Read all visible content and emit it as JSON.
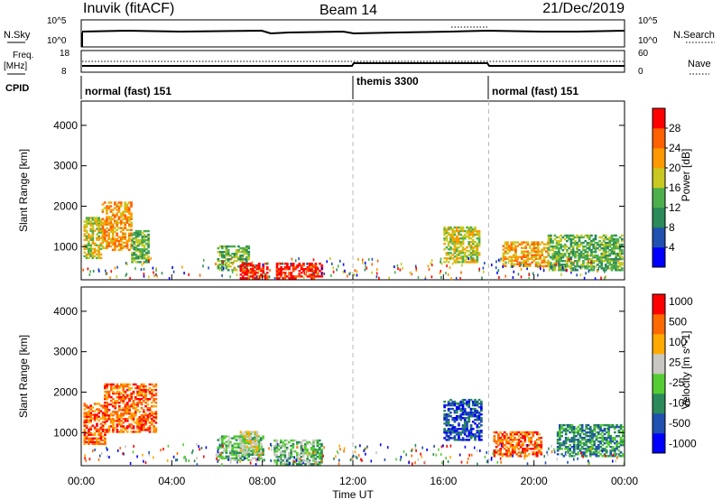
{
  "header": {
    "site": "Inuvik (fitACF)",
    "beam": "Beam 14",
    "date": "21/Dec/2019"
  },
  "top_panels": {
    "nsky_label": "N.Sky",
    "nsearch_label": "N.Search",
    "nsky_ticks": [
      "10^5",
      "10^0"
    ],
    "nsearch_ticks": [
      "10^5",
      "10^0"
    ],
    "freq_label": "Freq.",
    "freq_unit": "[MHz]",
    "freq_ticks": [
      "18",
      "8"
    ],
    "nave_label": "Nave",
    "nave_ticks": [
      "60",
      "0"
    ],
    "cpid_label": "CPID",
    "cpid_segments": [
      {
        "label": "normal (fast) 151",
        "start_hour": 0
      },
      {
        "label": "themis 3300",
        "start_hour": 12
      },
      {
        "label": "normal (fast) 151",
        "start_hour": 18
      }
    ]
  },
  "chart_data": [
    {
      "type": "heatmap",
      "name": "power",
      "ylabel": "Slant Range [km]",
      "ylim": [
        180,
        4600
      ],
      "yticks": [
        1000,
        2000,
        3000,
        4000
      ],
      "xlim": [
        0,
        24
      ],
      "colorbar_label": "Power [dB]",
      "colorbar_ticks": [
        "4",
        "8",
        "12",
        "16",
        "20",
        "24",
        "28"
      ],
      "colors": [
        "#0000ff",
        "#2050b0",
        "#2a8a5a",
        "#4caf4c",
        "#c8c820",
        "#ff9900",
        "#ff6000",
        "#ff0000"
      ],
      "regions": [
        {
          "t0": 0.1,
          "t1": 0.9,
          "r0": 700,
          "r1": 1700,
          "level": 4
        },
        {
          "t0": 0.9,
          "t1": 2.2,
          "r0": 900,
          "r1": 2100,
          "level": 5
        },
        {
          "t0": 2.2,
          "t1": 3.0,
          "r0": 600,
          "r1": 1400,
          "level": 3
        },
        {
          "t0": 6.0,
          "t1": 7.4,
          "r0": 400,
          "r1": 1000,
          "level": 3
        },
        {
          "t0": 7.0,
          "t1": 8.2,
          "r0": 200,
          "r1": 600,
          "level": 7
        },
        {
          "t0": 8.6,
          "t1": 10.6,
          "r0": 200,
          "r1": 600,
          "level": 7
        },
        {
          "t0": 16.0,
          "t1": 17.6,
          "r0": 600,
          "r1": 1500,
          "level": 4
        },
        {
          "t0": 18.6,
          "t1": 20.6,
          "r0": 500,
          "r1": 1100,
          "level": 5
        },
        {
          "t0": 20.6,
          "t1": 23.9,
          "r0": 400,
          "r1": 1300,
          "level": 3
        }
      ]
    },
    {
      "type": "heatmap",
      "name": "velocity",
      "ylabel": "Slant Range [km]",
      "ylim": [
        180,
        4600
      ],
      "yticks": [
        1000,
        2000,
        3000,
        4000
      ],
      "xlim": [
        0,
        24
      ],
      "xticks": [
        "00:00",
        "04:00",
        "08:00",
        "12:00",
        "16:00",
        "20:00",
        "00:00"
      ],
      "xlabel": "Time UT",
      "colorbar_label": "Velocity [m s^-1]",
      "colorbar_ticks": [
        "1000",
        "500",
        "100",
        "25",
        "-25",
        "-100",
        "-500",
        "-1000"
      ],
      "colors": [
        "#0000ff",
        "#2050b0",
        "#2a8a5a",
        "#55cc33",
        "#c8c8c0",
        "#ffaa00",
        "#ff6a00",
        "#ff0000"
      ],
      "regions": [
        {
          "t0": 0.1,
          "t1": 1.0,
          "r0": 700,
          "r1": 1700,
          "level": 6
        },
        {
          "t0": 1.0,
          "t1": 3.3,
          "r0": 1000,
          "r1": 2200,
          "level": 6
        },
        {
          "t0": 6.0,
          "t1": 8.0,
          "r0": 300,
          "r1": 900,
          "level": 3
        },
        {
          "t0": 7.0,
          "t1": 7.8,
          "r0": 500,
          "r1": 1000,
          "level": 4
        },
        {
          "t0": 8.5,
          "t1": 10.6,
          "r0": 200,
          "r1": 800,
          "level": 3
        },
        {
          "t0": 16.0,
          "t1": 17.7,
          "r0": 800,
          "r1": 1800,
          "level": 1
        },
        {
          "t0": 18.2,
          "t1": 20.3,
          "r0": 400,
          "r1": 1000,
          "level": 6
        },
        {
          "t0": 21.0,
          "t1": 23.9,
          "r0": 400,
          "r1": 1200,
          "level": 2
        }
      ]
    }
  ]
}
